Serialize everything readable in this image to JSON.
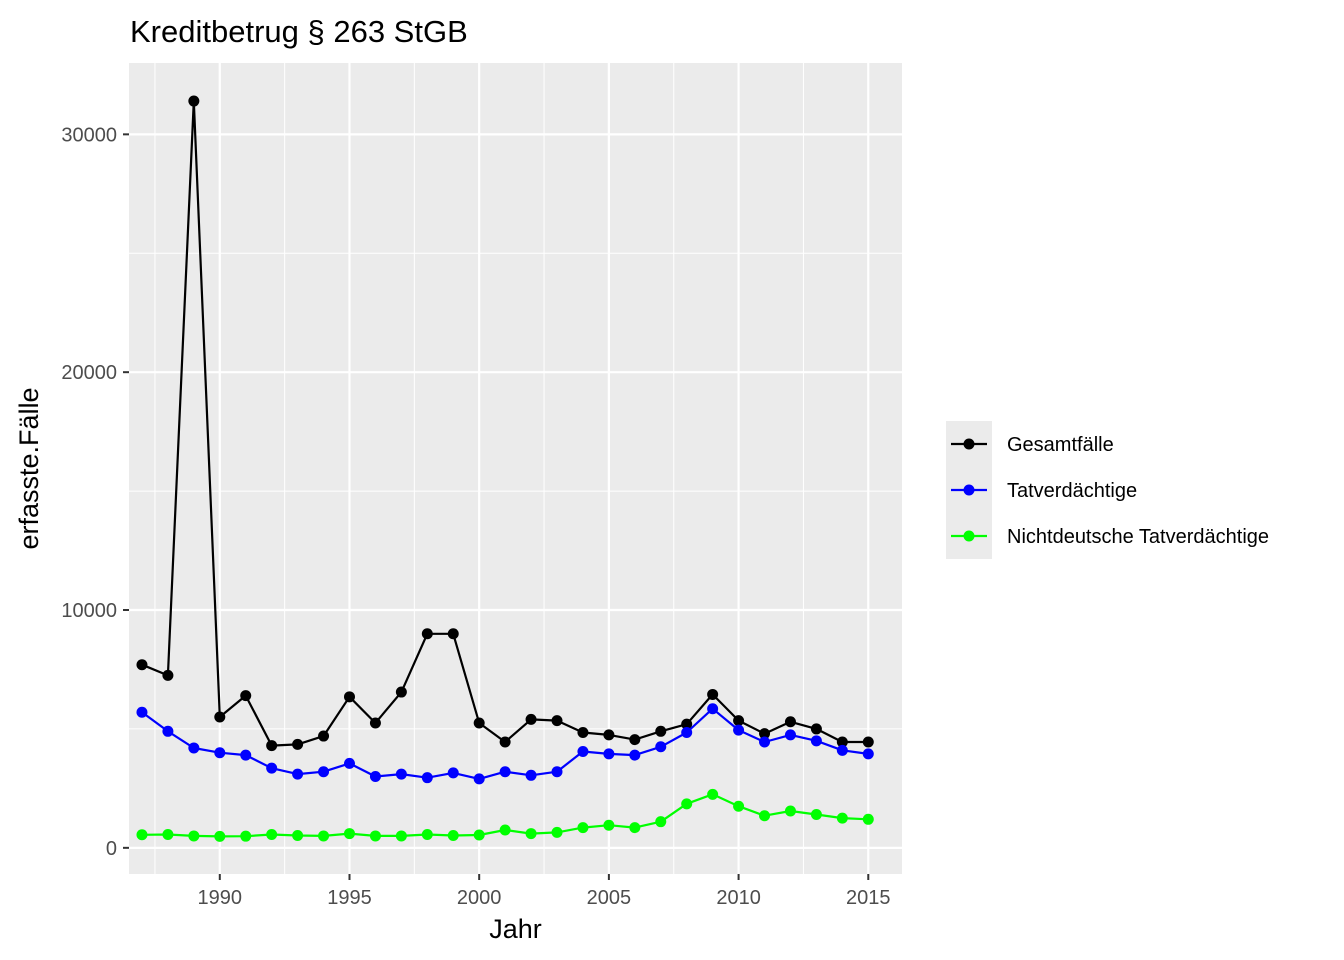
{
  "chart_data": {
    "type": "line",
    "title": "Kreditbetrug § 263 StGB",
    "xlabel": "Jahr",
    "ylabel": "erfasste.Fälle",
    "xlim": [
      1986.5,
      2016.3
    ],
    "ylim": [
      -1100,
      33000
    ],
    "x_ticks": [
      1990,
      1995,
      2000,
      2005,
      2010,
      2015
    ],
    "y_ticks": [
      0,
      10000,
      20000,
      30000
    ],
    "grid": true,
    "legend_position": "right",
    "x": [
      1987,
      1988,
      1989,
      1990,
      1991,
      1992,
      1993,
      1994,
      1995,
      1996,
      1997,
      1998,
      1999,
      2000,
      2001,
      2002,
      2003,
      2004,
      2005,
      2006,
      2007,
      2008,
      2009,
      2010,
      2011,
      2012,
      2013,
      2014,
      2015
    ],
    "series": [
      {
        "name": "Gesamtfälle",
        "color": "#000000",
        "values": [
          7700,
          7250,
          31400,
          5500,
          6400,
          4300,
          4350,
          4700,
          6350,
          5250,
          6550,
          9000,
          9000,
          5250,
          4450,
          5400,
          5350,
          4850,
          4750,
          4550,
          4900,
          5200,
          6450,
          5350,
          4800,
          5300,
          5000,
          4450,
          4450
        ]
      },
      {
        "name": "Tatverdächtige",
        "color": "#0000ff",
        "values": [
          5700,
          4900,
          4200,
          4000,
          3900,
          3350,
          3100,
          3200,
          3550,
          3000,
          3100,
          2950,
          3150,
          2900,
          3200,
          3050,
          3200,
          4050,
          3950,
          3900,
          4250,
          4850,
          5850,
          4950,
          4450,
          4750,
          4500,
          4100,
          3950
        ]
      },
      {
        "name": "Nichtdeutsche Tatverdächtige",
        "color": "#00ff00",
        "values": [
          550,
          560,
          500,
          480,
          490,
          560,
          520,
          500,
          600,
          500,
          500,
          560,
          520,
          540,
          750,
          600,
          650,
          850,
          950,
          850,
          1100,
          1850,
          2250,
          1750,
          1350,
          1550,
          1400,
          1250,
          1200
        ]
      }
    ]
  }
}
